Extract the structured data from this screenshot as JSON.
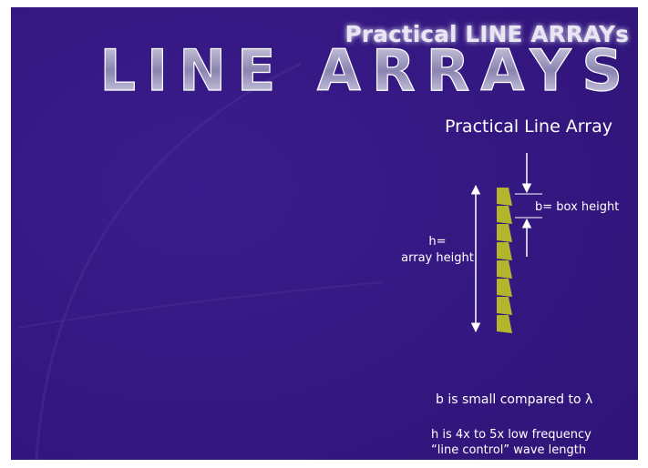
{
  "slide": {
    "header": {
      "subtitle": "Practical LINE ARRAYs",
      "title": "LINE ARRAYS"
    },
    "heading": "Practical Line Array",
    "labels": {
      "array_height_1": "h=",
      "array_height_2": "array height",
      "box_height": "b= box height"
    },
    "notes": [
      "b is small compared to λ",
      "h is 4x to 5x low frequency",
      "“line control” wave length"
    ]
  }
}
